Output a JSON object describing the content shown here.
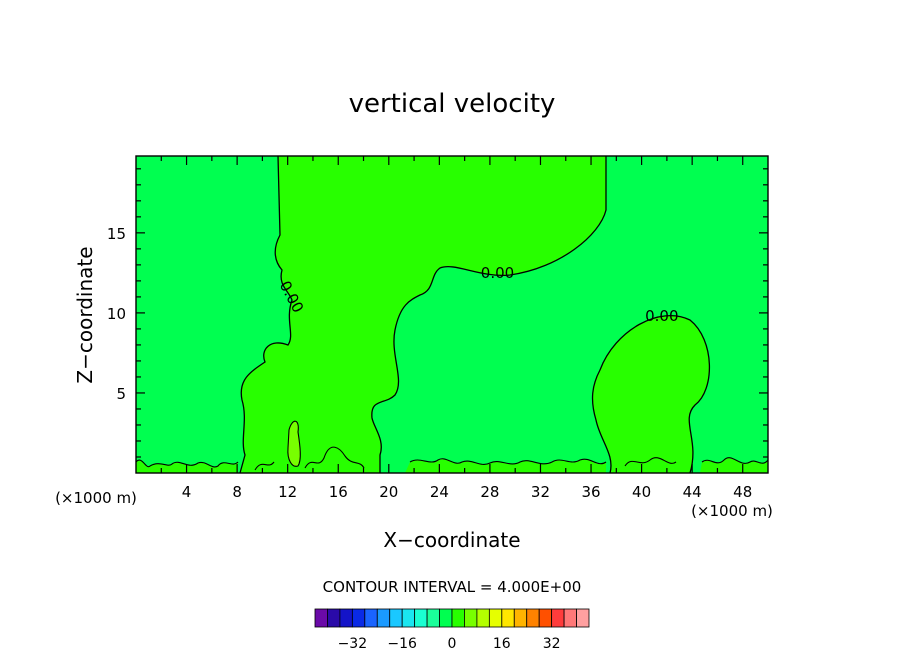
{
  "chart_data": {
    "type": "heatmap",
    "title": "vertical velocity",
    "xlabel": "X−coordinate",
    "ylabel": "Z−coordinate",
    "x_unit_left": "(×1000 m)",
    "x_unit_right": "(×1000 m)",
    "xlim": [
      0,
      50
    ],
    "ylim": [
      0,
      19.8
    ],
    "x_ticks": [
      4,
      8,
      12,
      16,
      20,
      24,
      28,
      32,
      36,
      40,
      44,
      48
    ],
    "y_ticks": [
      5,
      10,
      15
    ],
    "contour_interval_label": "CONTOUR INTERVAL = 4.000E+00",
    "contour_labels": [
      {
        "text": "0.00",
        "x": 28.6,
        "y": 12.5
      },
      {
        "text": "0.00",
        "x": 41.6,
        "y": 9.8
      },
      {
        "text": "0.00",
        "x": 12.3,
        "y": 11.0
      }
    ],
    "colorbar": {
      "colors": [
        "#6a0aa8",
        "#2a0aa8",
        "#1414c8",
        "#0a2ae6",
        "#1a64ff",
        "#1a9aff",
        "#1ac8ff",
        "#1ae6f0",
        "#1affd2",
        "#1aff9a",
        "#00ff50",
        "#28ff00",
        "#78ff00",
        "#b4ff00",
        "#e6ff00",
        "#ffe600",
        "#ffb400",
        "#ff8200",
        "#ff5000",
        "#ff3c3c",
        "#ff7878",
        "#ffa0a0"
      ],
      "tick_labels": [
        "−32",
        "−16",
        "0",
        "16",
        "32"
      ]
    },
    "regions": {
      "background_color": "#00ff50",
      "updraft_color": "#28ff00",
      "core_color": "#78ff00"
    }
  }
}
